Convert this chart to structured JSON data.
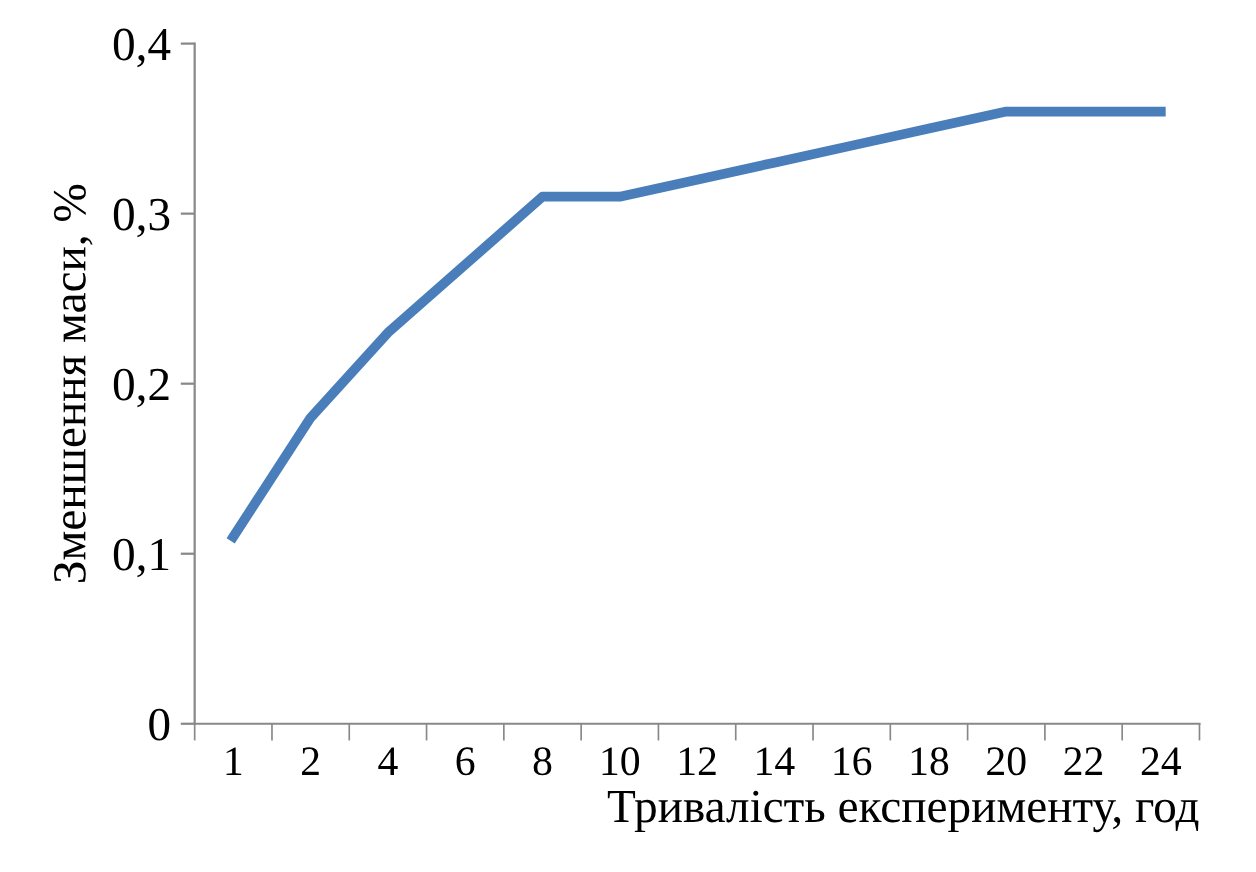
{
  "chart_data": {
    "type": "line",
    "xlabel": "Тривалість експерименту, год",
    "ylabel": "Зменшення маси, %",
    "categories": [
      "1",
      "2",
      "4",
      "6",
      "8",
      "10",
      "12",
      "14",
      "16",
      "18",
      "20",
      "22",
      "24"
    ],
    "series": [
      {
        "color": "#4a7ebb",
        "values": [
          0.11,
          0.18,
          0.23,
          0.27,
          0.31,
          0.31,
          0.32,
          0.33,
          0.34,
          0.35,
          0.36,
          0.36,
          0.36
        ]
      }
    ],
    "ylim": [
      0,
      0.4
    ],
    "yticks": [
      0,
      {
        "value": 0.1,
        "label": "0,1"
      },
      {
        "value": 0.2,
        "label": "0,2"
      },
      {
        "value": 0.3,
        "label": "0,3"
      },
      {
        "value": 0.4,
        "label": "0,4"
      }
    ],
    "grid": false,
    "legend": false,
    "marker": "none",
    "line_style": "solid"
  }
}
